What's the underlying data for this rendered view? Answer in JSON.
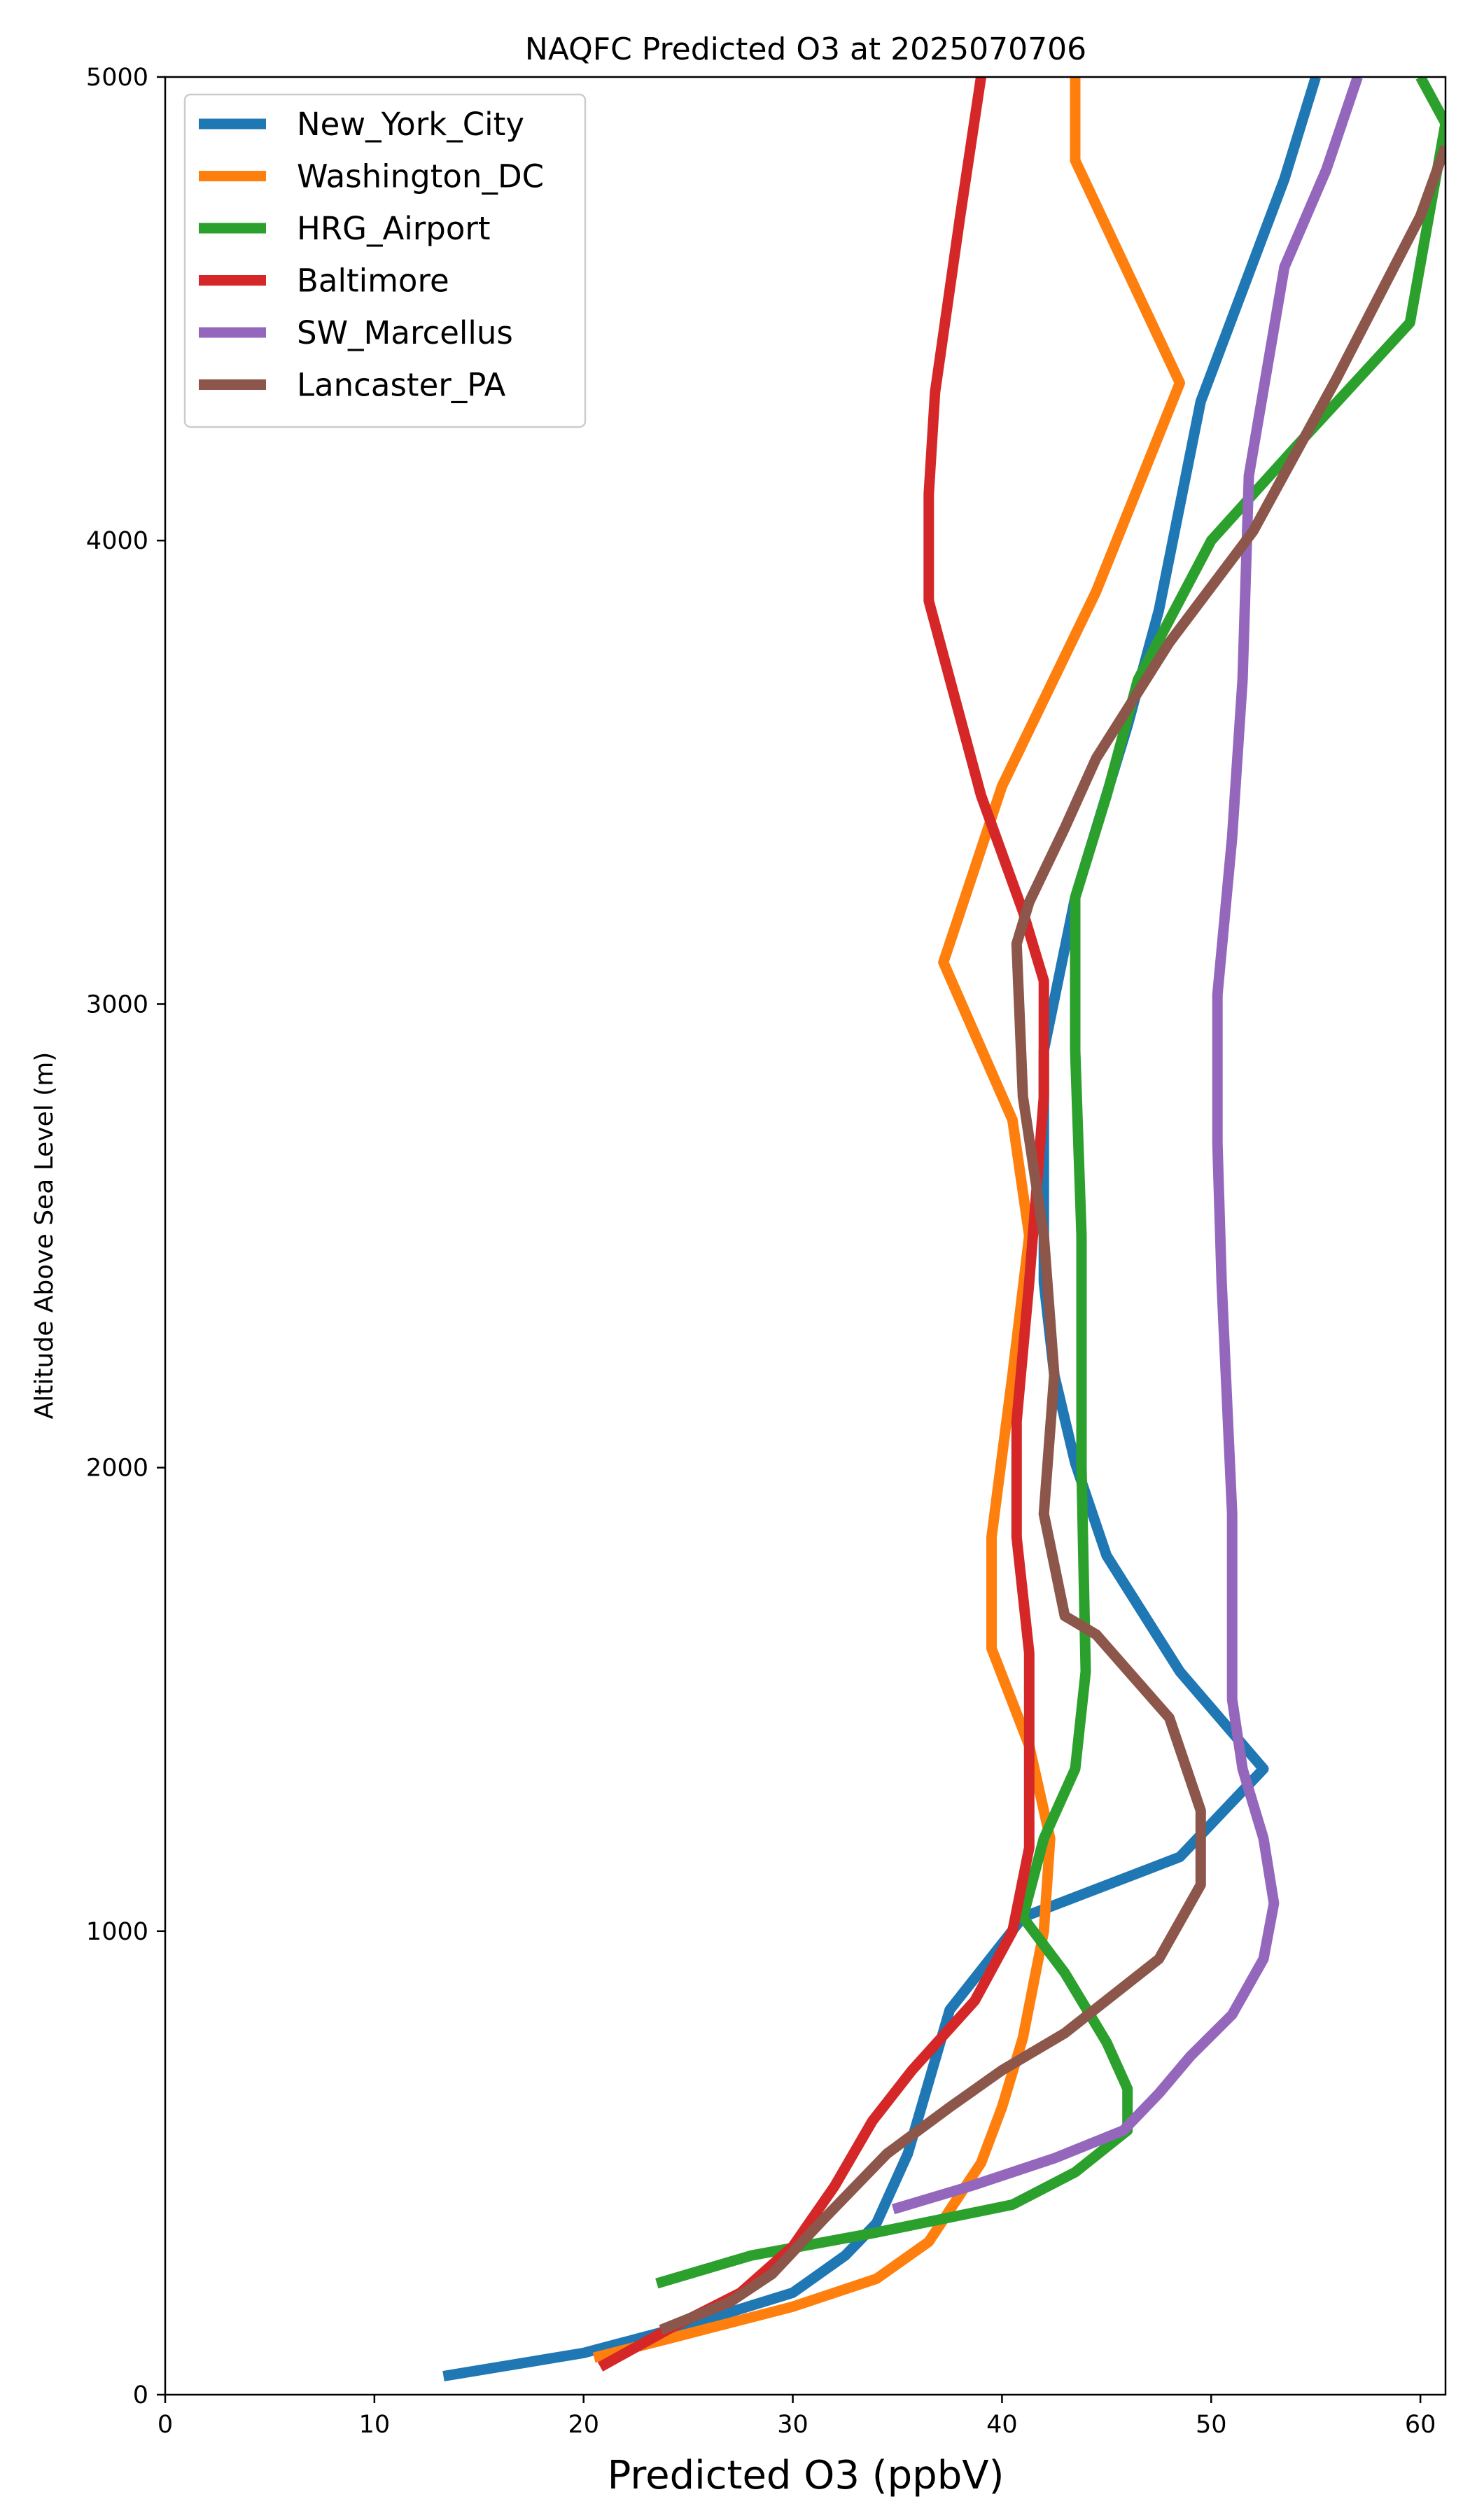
{
  "chart_data": {
    "type": "line",
    "title": "NAQFC Predicted O3 at 2025070706",
    "xlabel": "Predicted O3 (ppbV)",
    "ylabel": "Altitude Above Sea Level (m)",
    "xlim": [
      0,
      61.2
    ],
    "ylim": [
      0,
      5000
    ],
    "xticks": [
      0,
      10,
      20,
      30,
      40,
      50,
      60
    ],
    "yticks": [
      0,
      1000,
      2000,
      3000,
      4000,
      5000
    ],
    "grid": false,
    "legend_position": "top-left",
    "series": [
      {
        "name": "New_York_City",
        "color": "#1f77b4",
        "points": [
          [
            13.3,
            40
          ],
          [
            20,
            90
          ],
          [
            25,
            150
          ],
          [
            30,
            220
          ],
          [
            32.5,
            300
          ],
          [
            34,
            370
          ],
          [
            35.5,
            520
          ],
          [
            37.5,
            830
          ],
          [
            41,
            1030
          ],
          [
            48.5,
            1160
          ],
          [
            52.5,
            1350
          ],
          [
            48.5,
            1560
          ],
          [
            45,
            1810
          ],
          [
            43.5,
            2010
          ],
          [
            42.5,
            2200
          ],
          [
            42,
            2400
          ],
          [
            42,
            2650
          ],
          [
            42,
            2900
          ],
          [
            43.5,
            3230
          ],
          [
            46,
            3600
          ],
          [
            47.5,
            3850
          ],
          [
            49.5,
            4300
          ],
          [
            53.5,
            4780
          ],
          [
            55,
            5000
          ]
        ]
      },
      {
        "name": "Washington_DC",
        "color": "#ff7f0e",
        "points": [
          [
            20.5,
            80
          ],
          [
            24,
            120
          ],
          [
            30,
            190
          ],
          [
            34,
            250
          ],
          [
            36.5,
            330
          ],
          [
            39,
            500
          ],
          [
            40,
            620
          ],
          [
            41,
            770
          ],
          [
            42,
            1000
          ],
          [
            42.3,
            1200
          ],
          [
            41.3,
            1400
          ],
          [
            39.5,
            1610
          ],
          [
            39.5,
            1850
          ],
          [
            40.5,
            2200
          ],
          [
            41.3,
            2500
          ],
          [
            40.5,
            2750
          ],
          [
            37.2,
            3090
          ],
          [
            40,
            3470
          ],
          [
            44.5,
            3890
          ],
          [
            48.5,
            4340
          ],
          [
            43.5,
            4820
          ],
          [
            43.5,
            5000
          ]
        ]
      },
      {
        "name": "HRG_Airport",
        "color": "#2ca02c",
        "points": [
          [
            23.5,
            240
          ],
          [
            28,
            300
          ],
          [
            34,
            350
          ],
          [
            40.5,
            410
          ],
          [
            43.5,
            480
          ],
          [
            46,
            570
          ],
          [
            46,
            660
          ],
          [
            45,
            760
          ],
          [
            43,
            910
          ],
          [
            41,
            1030
          ],
          [
            42,
            1200
          ],
          [
            43.5,
            1350
          ],
          [
            44,
            1560
          ],
          [
            43.8,
            2000
          ],
          [
            43.8,
            2500
          ],
          [
            43.5,
            2900
          ],
          [
            43.5,
            3230
          ],
          [
            45,
            3450
          ],
          [
            46.5,
            3700
          ],
          [
            50,
            4000
          ],
          [
            54,
            4200
          ],
          [
            59.5,
            4470
          ],
          [
            61.2,
            4900
          ],
          [
            60,
            5000
          ]
        ]
      },
      {
        "name": "Baltimore",
        "color": "#d62728",
        "points": [
          [
            20.8,
            60
          ],
          [
            24,
            140
          ],
          [
            27.5,
            220
          ],
          [
            30,
            320
          ],
          [
            32,
            450
          ],
          [
            33.8,
            590
          ],
          [
            35.7,
            700
          ],
          [
            38.7,
            850
          ],
          [
            40.5,
            1000
          ],
          [
            41.3,
            1180
          ],
          [
            41.3,
            1400
          ],
          [
            41.3,
            1600
          ],
          [
            40.7,
            1850
          ],
          [
            40.7,
            2100
          ],
          [
            41.3,
            2400
          ],
          [
            42,
            2800
          ],
          [
            42,
            3050
          ],
          [
            41,
            3200
          ],
          [
            39,
            3450
          ],
          [
            36.5,
            3870
          ],
          [
            36.5,
            4100
          ],
          [
            36.8,
            4320
          ],
          [
            38,
            4700
          ],
          [
            39,
            5000
          ]
        ]
      },
      {
        "name": "SW_Marcellus",
        "color": "#9467bd",
        "points": [
          [
            34.8,
            400
          ],
          [
            38.5,
            450
          ],
          [
            42.5,
            510
          ],
          [
            45.8,
            570
          ],
          [
            47.5,
            650
          ],
          [
            49,
            730
          ],
          [
            51,
            820
          ],
          [
            52.5,
            940
          ],
          [
            53,
            1060
          ],
          [
            52.5,
            1200
          ],
          [
            51.5,
            1350
          ],
          [
            51,
            1500
          ],
          [
            51,
            1700
          ],
          [
            51,
            1900
          ],
          [
            50.8,
            2100
          ],
          [
            50.5,
            2400
          ],
          [
            50.3,
            2700
          ],
          [
            50.3,
            3020
          ],
          [
            51,
            3360
          ],
          [
            51.5,
            3700
          ],
          [
            51.8,
            4140
          ],
          [
            53.5,
            4590
          ],
          [
            55.5,
            4800
          ],
          [
            57,
            5000
          ]
        ]
      },
      {
        "name": "Lancaster_PA",
        "color": "#8c564b",
        "points": [
          [
            23.7,
            140
          ],
          [
            27,
            200
          ],
          [
            29,
            260
          ],
          [
            31.5,
            380
          ],
          [
            34.5,
            520
          ],
          [
            37.5,
            620
          ],
          [
            40,
            700
          ],
          [
            43,
            780
          ],
          [
            47.5,
            940
          ],
          [
            49.5,
            1100
          ],
          [
            49.5,
            1260
          ],
          [
            48,
            1460
          ],
          [
            44.5,
            1640
          ],
          [
            43,
            1680
          ],
          [
            42,
            1900
          ],
          [
            42.5,
            2200
          ],
          [
            42,
            2500
          ],
          [
            41,
            2800
          ],
          [
            40.7,
            3130
          ],
          [
            41.3,
            3220
          ],
          [
            43,
            3380
          ],
          [
            44.5,
            3530
          ],
          [
            48,
            3780
          ],
          [
            52,
            4020
          ],
          [
            56,
            4350
          ],
          [
            60,
            4700
          ],
          [
            61.2,
            4850
          ]
        ]
      }
    ]
  }
}
